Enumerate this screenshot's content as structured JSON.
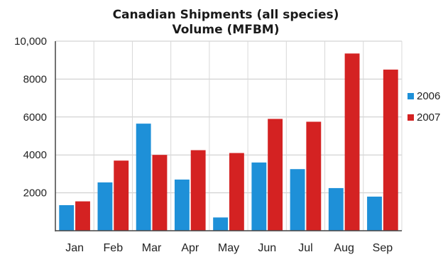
{
  "chart_data": {
    "type": "bar",
    "title": "Canadian Shipments (all species)",
    "subtitle": "Volume (MFBM)",
    "xlabel": "",
    "ylabel": "",
    "categories": [
      "Jan",
      "Feb",
      "Mar",
      "Apr",
      "May",
      "Jun",
      "Jul",
      "Aug",
      "Sep"
    ],
    "series": [
      {
        "name": "2006",
        "color": "#1e90d8",
        "values": [
          1350,
          2550,
          5650,
          2700,
          700,
          3600,
          3250,
          2250,
          1800
        ]
      },
      {
        "name": "2007",
        "color": "#d42222",
        "values": [
          1550,
          3700,
          4000,
          4250,
          4100,
          5900,
          5750,
          9350,
          8500
        ]
      }
    ],
    "ylim": [
      0,
      10000
    ],
    "yticks": [
      2000,
      4000,
      6000,
      8000,
      10000
    ],
    "ytick_labels": [
      "2000",
      "4000",
      "6000",
      "8000",
      "10,000"
    ],
    "grid": true,
    "legend": "right"
  }
}
